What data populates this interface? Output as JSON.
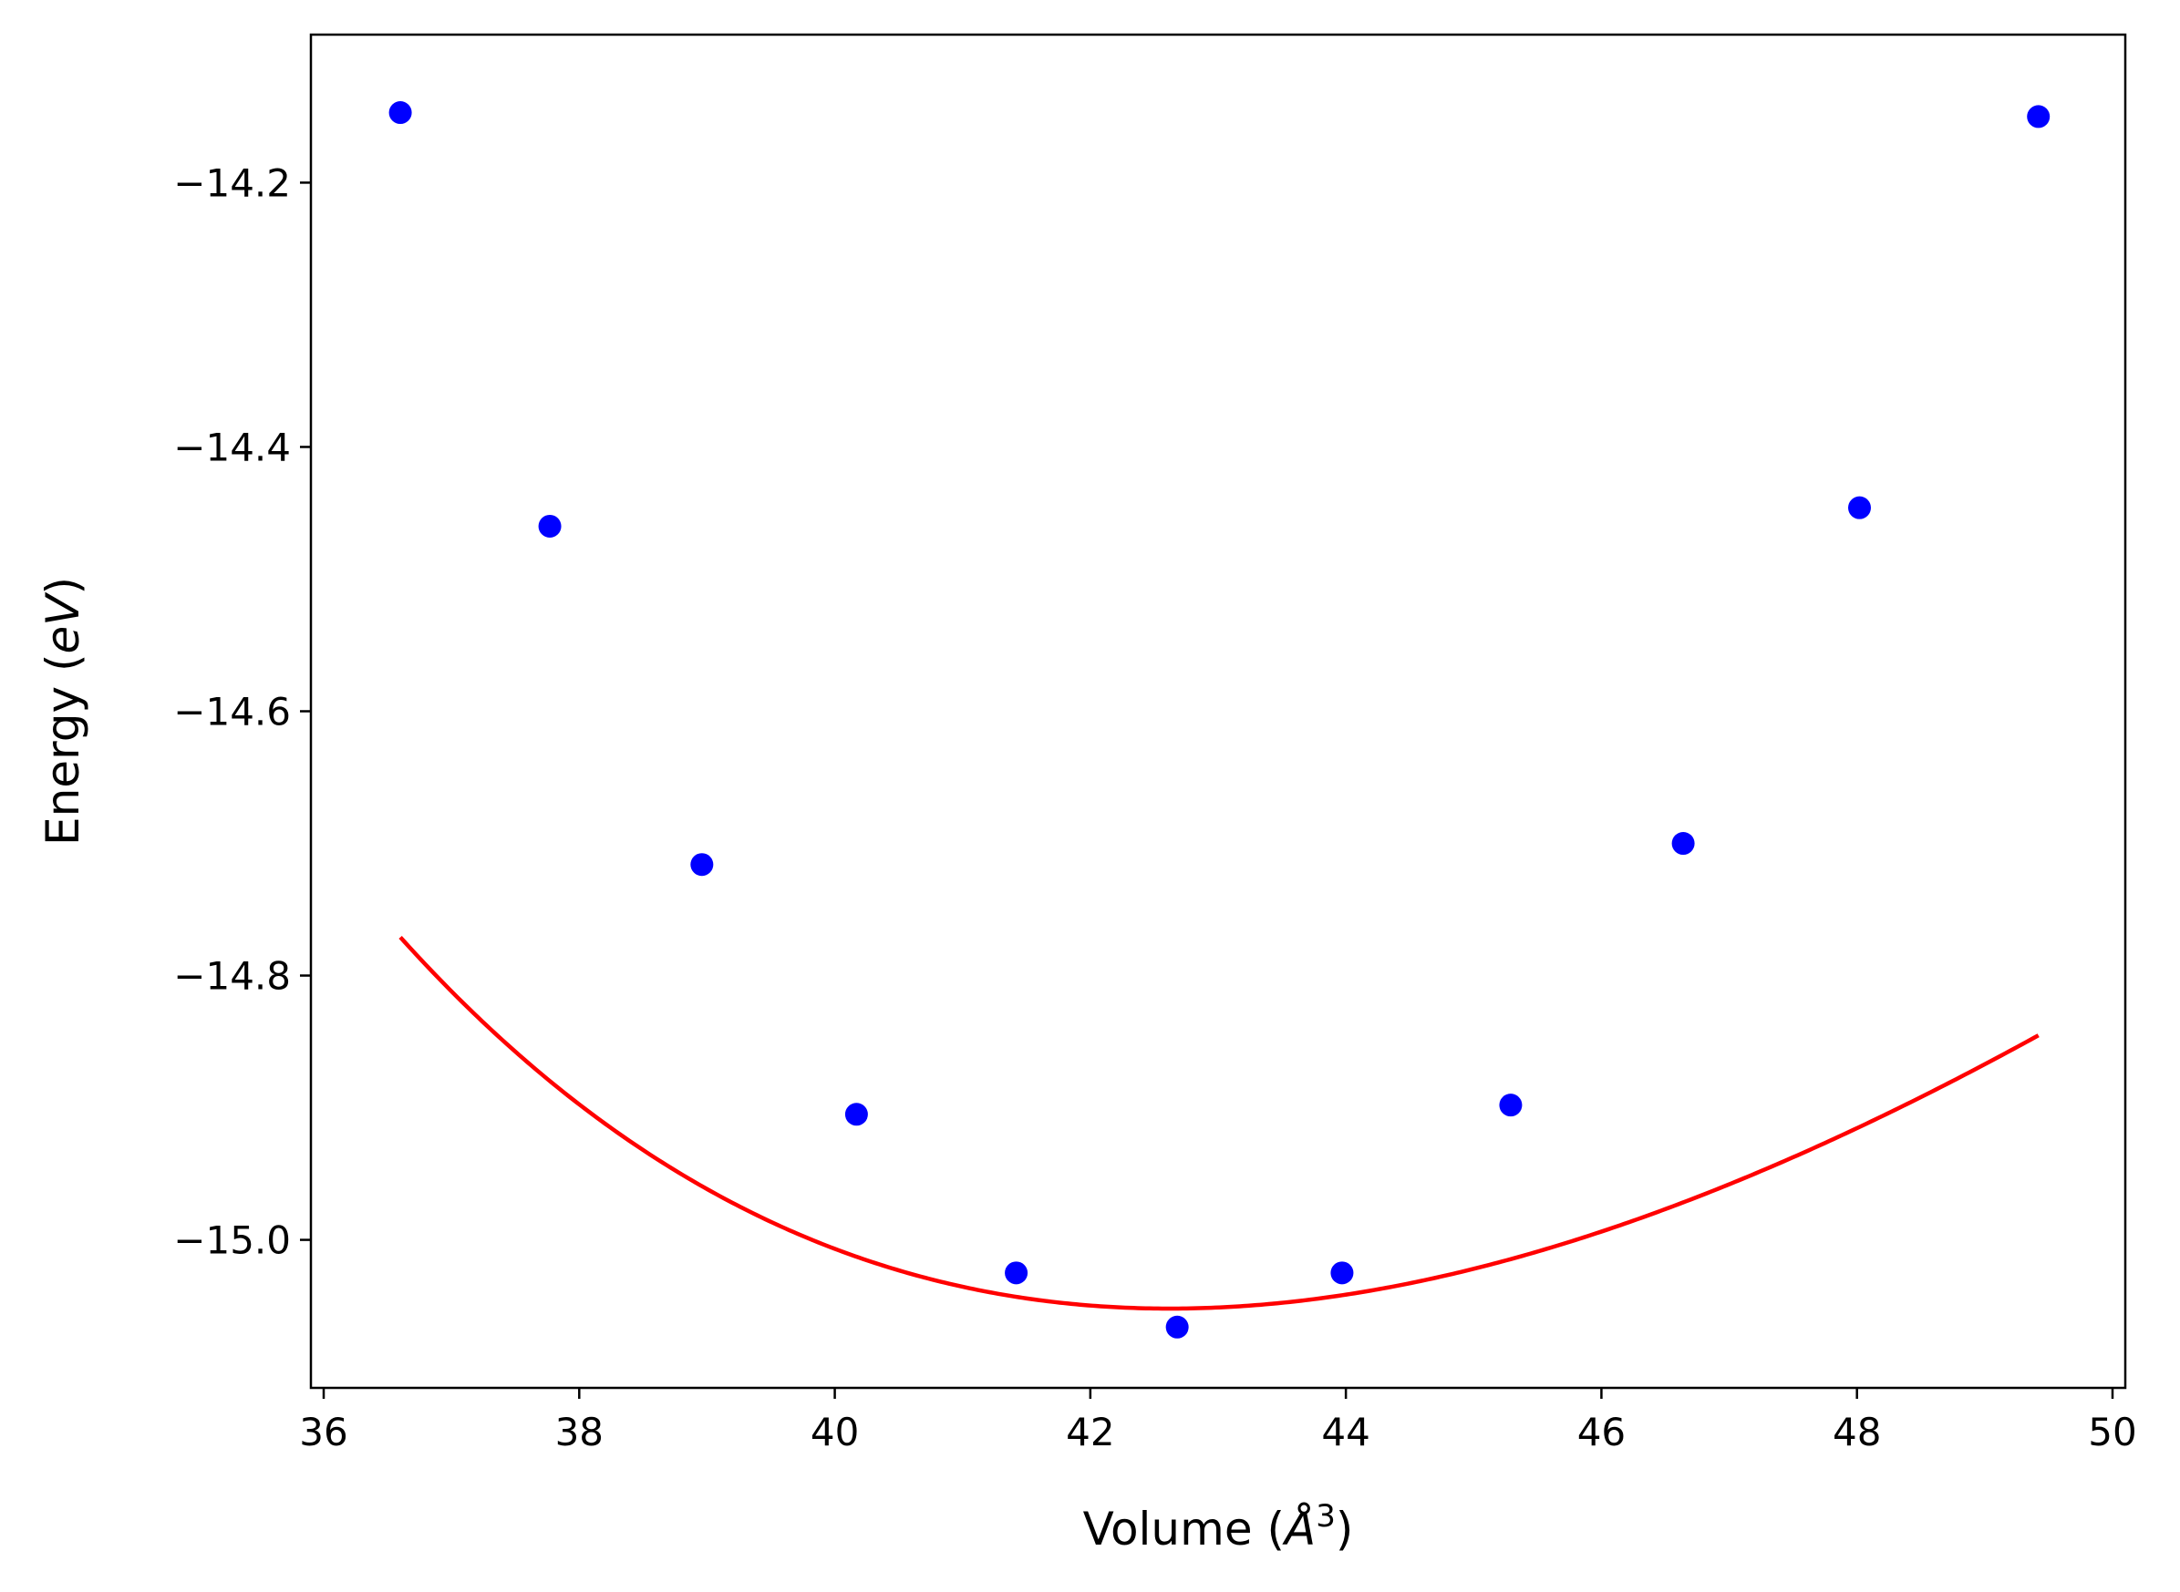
{
  "chart_data": {
    "type": "scatter",
    "title": "",
    "xlabel": {
      "prefix": "Volume (",
      "unit": "Å",
      "sup": "3",
      "suffix": ")"
    },
    "ylabel": {
      "prefix": "Energy (",
      "unit": "eV",
      "suffix": ")"
    },
    "xlim": [
      35.9,
      50.1
    ],
    "ylim": [
      -15.112,
      -14.088
    ],
    "xticks": [
      36,
      38,
      40,
      42,
      44,
      46,
      48,
      50
    ],
    "xtick_labels": [
      "36",
      "38",
      "40",
      "42",
      "44",
      "46",
      "48",
      "50"
    ],
    "yticks": [
      -15.0,
      -14.8,
      -14.6,
      -14.4,
      -14.2
    ],
    "ytick_labels": [
      "−15.0",
      "−14.8",
      "−14.6",
      "−14.4",
      "−14.2"
    ],
    "grid": false,
    "series": [
      {
        "kind": "scatter",
        "color": "#0000ff",
        "x": [
          36.6,
          37.77,
          38.96,
          40.17,
          41.42,
          42.68,
          43.97,
          45.29,
          46.64,
          48.02,
          49.42
        ],
        "y": [
          -14.147,
          -14.46,
          -14.716,
          -14.905,
          -15.025,
          -15.066,
          -15.025,
          -14.898,
          -14.7,
          -14.446,
          -14.15
        ]
      },
      {
        "kind": "line",
        "color": "#ff0000",
        "fit": {
          "x_min": 36.6,
          "x_max": 49.42,
          "e0": -15.052,
          "v0": 42.62,
          "b0_ev_per_a3": 0.5,
          "b0_prime": 4.5
        }
      }
    ]
  }
}
